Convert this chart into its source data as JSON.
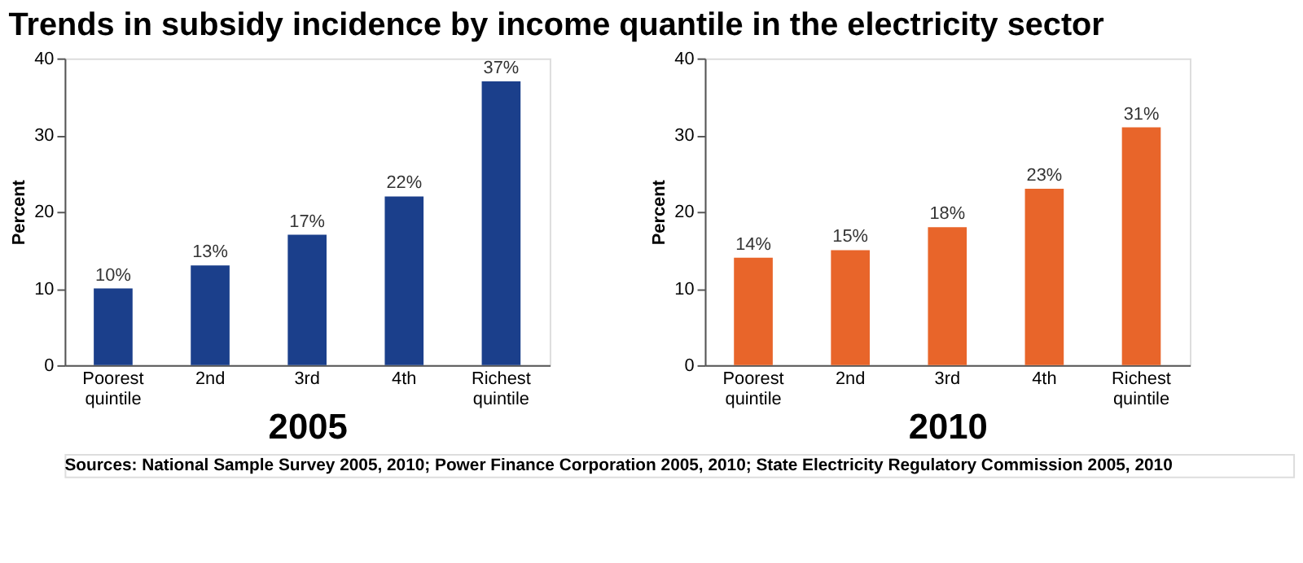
{
  "chart_data": [
    {
      "type": "bar",
      "title": "Trends in subsidy incidence by income quantile in the electricity sector",
      "xlabel": "2005",
      "ylabel": "Percent",
      "categories": [
        "Poorest quintile",
        "2nd",
        "3rd",
        "4th",
        "Richest quintile"
      ],
      "values": [
        10,
        13,
        17,
        22,
        37
      ],
      "value_labels": [
        "10%",
        "13%",
        "17%",
        "22%",
        "37%"
      ],
      "color": "#1b3f8b",
      "ylim": [
        0,
        40
      ],
      "yticks": [
        0,
        10,
        20,
        30,
        40
      ],
      "grid": false
    },
    {
      "type": "bar",
      "xlabel": "2010",
      "ylabel": "Percent",
      "categories": [
        "Poorest quintile",
        "2nd",
        "3rd",
        "4th",
        "Richest quintile"
      ],
      "values": [
        14,
        15,
        18,
        23,
        31
      ],
      "value_labels": [
        "14%",
        "15%",
        "18%",
        "23%",
        "31%"
      ],
      "color": "#e8652a",
      "ylim": [
        0,
        40
      ],
      "yticks": [
        0,
        10,
        20,
        30,
        40
      ],
      "grid": false,
      "annotations": [
        "Sources: National Sample Survey 2005, 2010; Power Finance Corporation 2005, 2010; State Electricity Regulatory Commission 2005, 2010"
      ]
    }
  ]
}
